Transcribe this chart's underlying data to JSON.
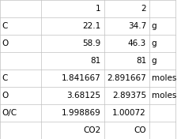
{
  "rows": [
    [
      "",
      "1",
      "2",
      ""
    ],
    [
      "C",
      "22.1",
      "34.7",
      "g"
    ],
    [
      "O",
      "58.9",
      "46.3",
      "g"
    ],
    [
      "",
      "81",
      "81",
      "g"
    ],
    [
      "C",
      "1.841667",
      "2.891667",
      "moles"
    ],
    [
      "O",
      "3.68125",
      "2.89375",
      "moles"
    ],
    [
      "O/C",
      "1.998869",
      "1.00072",
      ""
    ],
    [
      "",
      "CO2",
      "CO",
      ""
    ]
  ],
  "col_bounds": [
    0.0,
    0.235,
    0.595,
    0.855,
    1.0
  ],
  "background_color": "#ffffff",
  "grid_color": "#c0c0c0",
  "text_color": "#000000",
  "font_size": 7.5
}
